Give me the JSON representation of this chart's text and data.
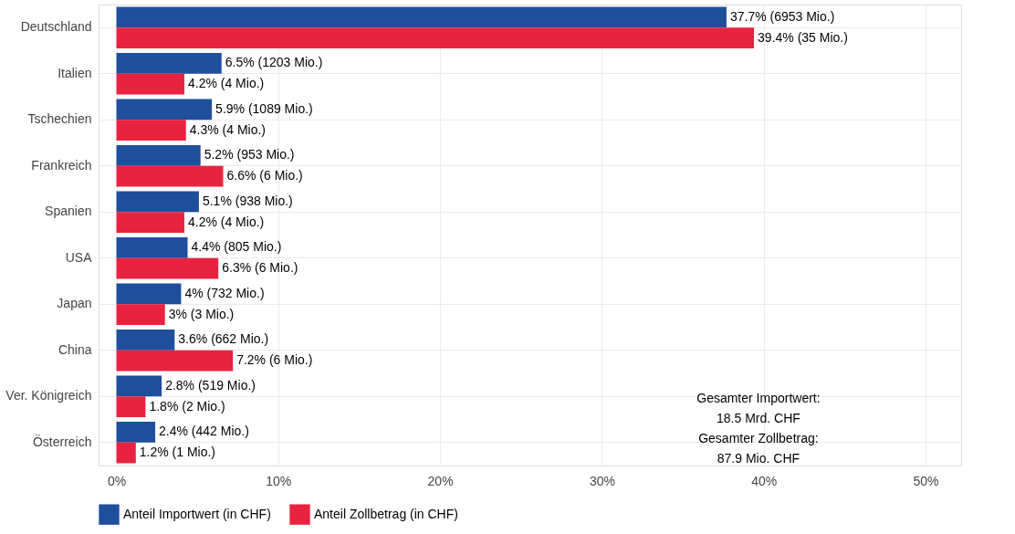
{
  "chart_data": {
    "type": "bar",
    "orientation": "horizontal",
    "categories": [
      "Deutschland",
      "Italien",
      "Tschechien",
      "Frankreich",
      "Spanien",
      "USA",
      "Japan",
      "China",
      "Ver. Königreich",
      "Österreich"
    ],
    "series": [
      {
        "name": "Anteil Importwert (in CHF)",
        "color": "#1f4e9c",
        "values": [
          37.7,
          6.5,
          5.9,
          5.2,
          5.1,
          4.4,
          4,
          3.6,
          2.8,
          2.4
        ],
        "value_labels": [
          "37.7% (6953 Mio.)",
          "6.5% (1203 Mio.)",
          "5.9% (1089 Mio.)",
          "5.2% (953 Mio.)",
          "5.1% (938 Mio.)",
          "4.4% (805 Mio.)",
          "4% (732 Mio.)",
          "3.6% (662 Mio.)",
          "2.8% (519 Mio.)",
          "2.4% (442 Mio.)"
        ]
      },
      {
        "name": "Anteil Zollbetrag (in CHF)",
        "color": "#e8233f",
        "values": [
          39.4,
          4.2,
          4.3,
          6.6,
          4.2,
          6.3,
          3,
          7.2,
          1.8,
          1.2
        ],
        "value_labels": [
          "39.4% (35 Mio.)",
          "4.2% (4 Mio.)",
          "4.3% (4 Mio.)",
          "6.6% (6 Mio.)",
          "4.2% (4 Mio.)",
          "6.3% (6 Mio.)",
          "3% (3 Mio.)",
          "7.2% (6 Mio.)",
          "1.8% (2 Mio.)",
          "1.2% (1 Mio.)"
        ]
      }
    ],
    "xlim": [
      -1.1,
      52.2
    ],
    "xticks": [
      {
        "value": 0,
        "label": "0%"
      },
      {
        "value": 10,
        "label": "10%"
      },
      {
        "value": 20,
        "label": "20%"
      },
      {
        "value": 30,
        "label": "30%"
      },
      {
        "value": 40,
        "label": "40%"
      },
      {
        "value": 50,
        "label": "50%"
      }
    ],
    "annotations": [
      "Gesamter Importwert:",
      "18.5 Mrd. CHF",
      "Gesamter Zollbetrag:",
      "87.9 Mio. CHF"
    ],
    "grid": true,
    "legend": "bottom"
  }
}
